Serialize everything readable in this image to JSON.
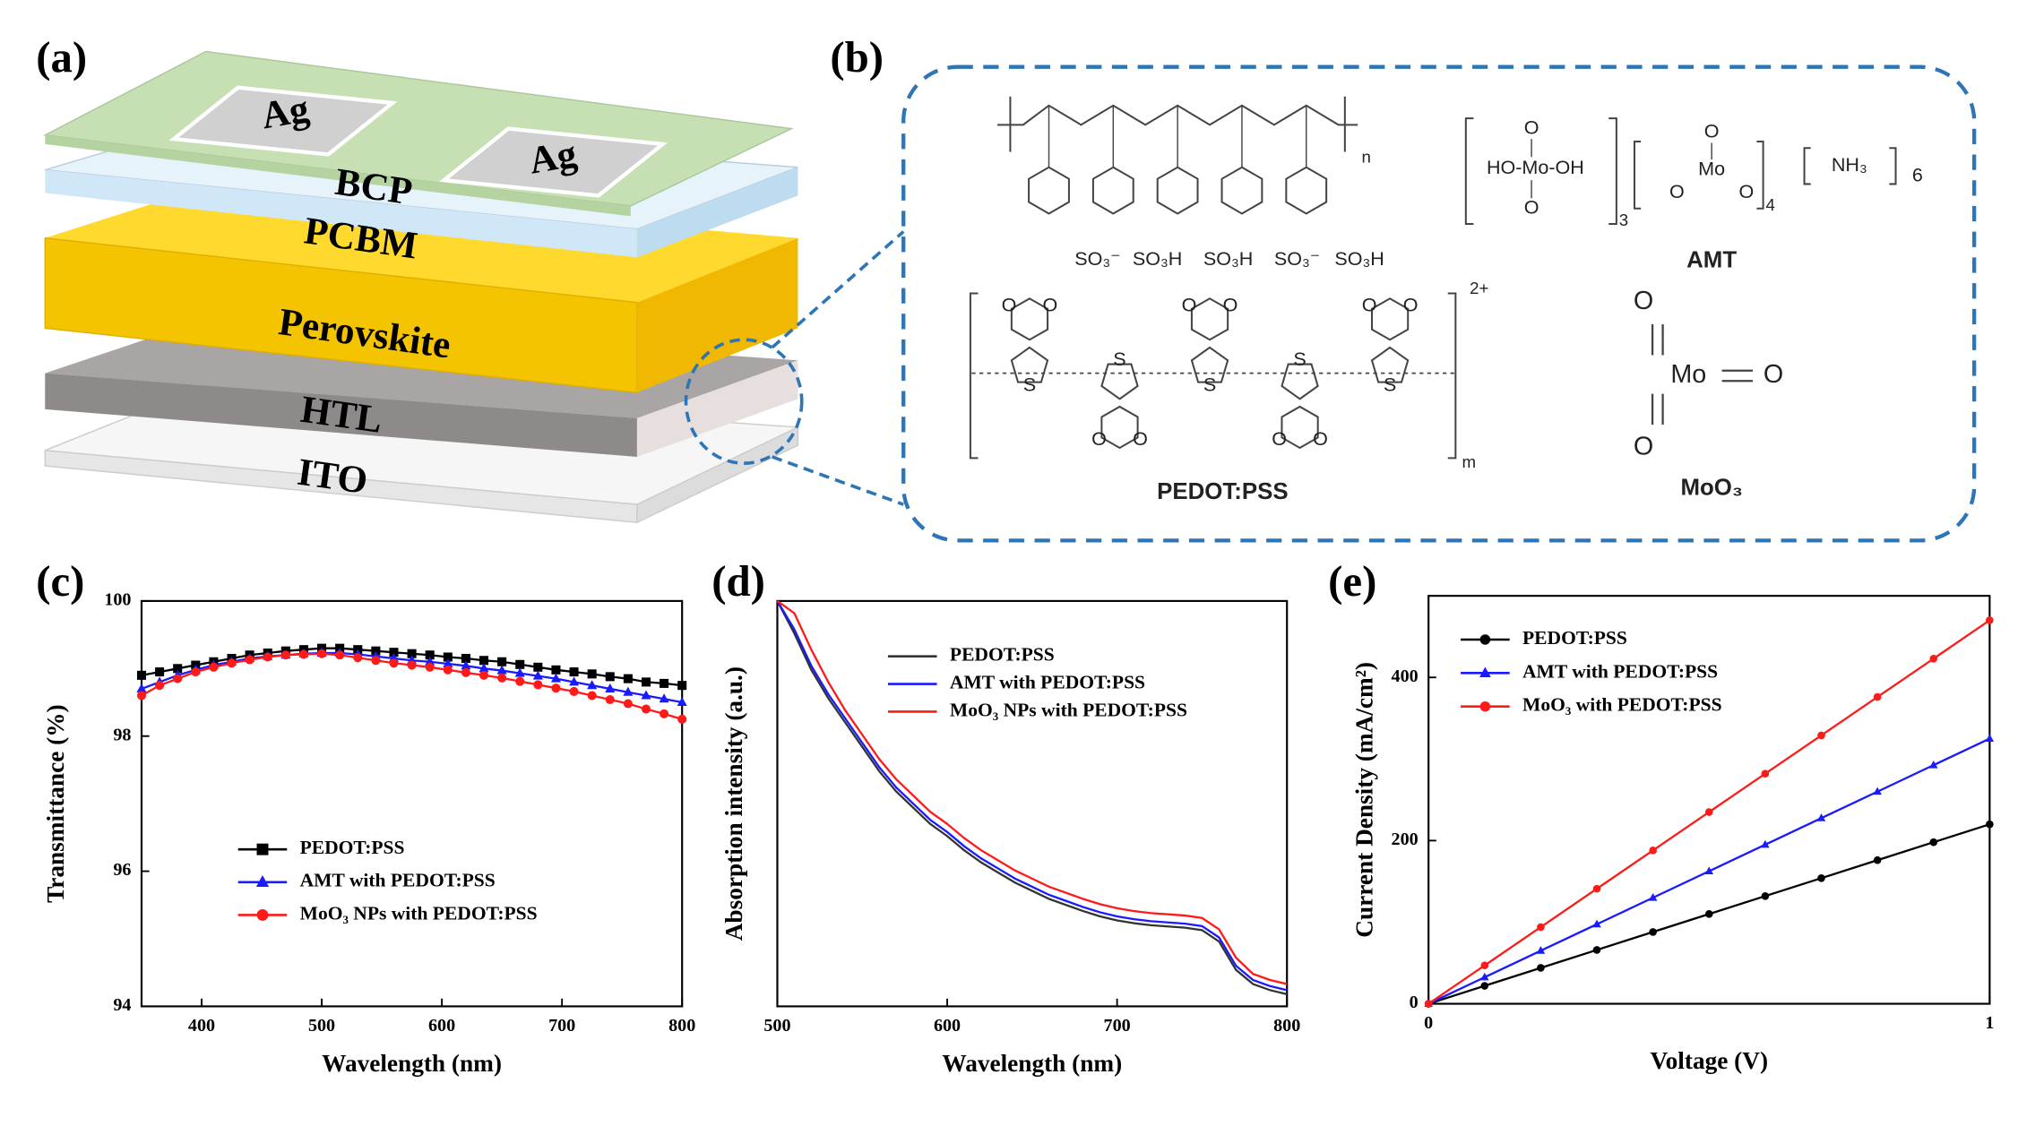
{
  "panel_labels": [
    "(a)",
    "(b)",
    "(c)",
    "(d)",
    "(e)"
  ],
  "device": {
    "layers": [
      "ITO",
      "HTL",
      "Perovskite",
      "PCBM",
      "BCP"
    ],
    "electrodes": [
      "Ag",
      "Ag"
    ]
  },
  "structures": {
    "pss": {
      "n": "n",
      "groups": [
        "SO₃⁻",
        "SO₃H",
        "SO₃H",
        "SO₃⁻",
        "SO₃H"
      ]
    },
    "pedot": {
      "charge": "2+",
      "m": "m",
      "sulfur": "S",
      "oxygen": "O",
      "label": "PEDOT:PSS"
    },
    "amt": {
      "acid": "HO-Mo-OH",
      "oxo": "O",
      "sub3": "3",
      "anion_mo": "Mo",
      "sub4": "4",
      "ammonia": "NH₃",
      "six": "6",
      "label": "AMT"
    },
    "moo3": {
      "metal": "Mo",
      "oxygen": "O",
      "label": "MoO₃"
    }
  },
  "chart_data": [
    {
      "type": "line",
      "xlabel": "Wavelength (nm)",
      "ylabel": "Transmittance (%)",
      "xlim": [
        350,
        800
      ],
      "ylim": [
        94,
        100
      ],
      "xticks": [
        400,
        500,
        600,
        700,
        800
      ],
      "yticks": [
        94,
        96,
        98,
        100
      ],
      "x": [
        350,
        365,
        380,
        395,
        410,
        425,
        440,
        455,
        470,
        485,
        500,
        515,
        530,
        545,
        560,
        575,
        590,
        605,
        620,
        635,
        650,
        665,
        680,
        695,
        710,
        725,
        740,
        755,
        770,
        785,
        800
      ],
      "series": [
        {
          "name": "PEDOT:PSS",
          "color": "#000000",
          "marker": "square",
          "values": [
            98.9,
            98.95,
            99.0,
            99.05,
            99.1,
            99.15,
            99.2,
            99.23,
            99.26,
            99.28,
            99.3,
            99.3,
            99.28,
            99.26,
            99.24,
            99.22,
            99.2,
            99.17,
            99.15,
            99.12,
            99.1,
            99.06,
            99.02,
            98.98,
            98.95,
            98.92,
            98.88,
            98.85,
            98.8,
            98.78,
            98.75
          ]
        },
        {
          "name": "AMT with PEDOT:PSS",
          "color": "#1a1aff",
          "marker": "triangle",
          "values": [
            98.7,
            98.8,
            98.9,
            98.98,
            99.05,
            99.1,
            99.15,
            99.18,
            99.2,
            99.22,
            99.23,
            99.23,
            99.21,
            99.18,
            99.15,
            99.12,
            99.1,
            99.07,
            99.04,
            99.0,
            98.97,
            98.93,
            98.89,
            98.85,
            98.8,
            98.75,
            98.7,
            98.65,
            98.6,
            98.55,
            98.5
          ]
        },
        {
          "name": "MoO₃ NPs with PEDOT:PSS",
          "color": "#ff1a1a",
          "marker": "circle",
          "values": [
            98.6,
            98.75,
            98.85,
            98.95,
            99.02,
            99.08,
            99.13,
            99.17,
            99.2,
            99.21,
            99.22,
            99.2,
            99.16,
            99.12,
            99.08,
            99.05,
            99.02,
            98.98,
            98.94,
            98.9,
            98.86,
            98.81,
            98.76,
            98.71,
            98.66,
            98.6,
            98.54,
            98.48,
            98.4,
            98.33,
            98.25
          ]
        }
      ]
    },
    {
      "type": "line",
      "xlabel": "Wavelength (nm)",
      "ylabel": "Absorption intensity (a.u.)",
      "xlim": [
        500,
        800
      ],
      "ylim": [
        0,
        1
      ],
      "xticks": [
        500,
        600,
        700,
        800
      ],
      "x": [
        500,
        510,
        520,
        530,
        540,
        550,
        560,
        570,
        580,
        590,
        600,
        610,
        620,
        630,
        640,
        650,
        660,
        670,
        680,
        690,
        700,
        710,
        720,
        730,
        740,
        750,
        760,
        770,
        780,
        790,
        800
      ],
      "series": [
        {
          "name": "PEDOT:PSS",
          "color": "#333333",
          "values": [
            1.0,
            0.92,
            0.83,
            0.76,
            0.7,
            0.64,
            0.58,
            0.53,
            0.49,
            0.45,
            0.42,
            0.385,
            0.355,
            0.33,
            0.305,
            0.285,
            0.265,
            0.25,
            0.235,
            0.222,
            0.212,
            0.205,
            0.2,
            0.197,
            0.194,
            0.188,
            0.16,
            0.09,
            0.055,
            0.04,
            0.03
          ]
        },
        {
          "name": "AMT with PEDOT:PSS",
          "color": "#1a1aff",
          "values": [
            1.0,
            0.93,
            0.84,
            0.77,
            0.71,
            0.65,
            0.59,
            0.54,
            0.5,
            0.46,
            0.43,
            0.395,
            0.365,
            0.34,
            0.315,
            0.295,
            0.275,
            0.26,
            0.245,
            0.232,
            0.222,
            0.215,
            0.21,
            0.207,
            0.204,
            0.198,
            0.17,
            0.1,
            0.065,
            0.05,
            0.04
          ]
        },
        {
          "name": "MoO₃ NPs with PEDOT:PSS",
          "color": "#ff1a1a",
          "values": [
            1.0,
            0.97,
            0.88,
            0.8,
            0.73,
            0.67,
            0.61,
            0.56,
            0.52,
            0.48,
            0.45,
            0.415,
            0.385,
            0.36,
            0.335,
            0.315,
            0.295,
            0.28,
            0.265,
            0.252,
            0.242,
            0.235,
            0.23,
            0.227,
            0.224,
            0.218,
            0.19,
            0.12,
            0.08,
            0.065,
            0.055
          ]
        }
      ]
    },
    {
      "type": "line",
      "xlabel": "Voltage (V)",
      "ylabel": "Current Density (mA/cm²)",
      "xlim": [
        0,
        1
      ],
      "ylim": [
        0,
        500
      ],
      "xticks": [
        0,
        1
      ],
      "yticks": [
        0,
        200,
        400
      ],
      "x": [
        0,
        0.1,
        0.2,
        0.3,
        0.4,
        0.5,
        0.6,
        0.7,
        0.8,
        0.9,
        1
      ],
      "series": [
        {
          "name": "PEDOT:PSS",
          "color": "#000000",
          "marker": "circle",
          "values": [
            0,
            22,
            44,
            66,
            88,
            110,
            132,
            154,
            176,
            198,
            220
          ]
        },
        {
          "name": "AMT with PEDOT:PSS",
          "color": "#1a1aff",
          "marker": "triangle",
          "values": [
            0,
            32.5,
            65,
            97.5,
            130,
            162.5,
            195,
            227.5,
            260,
            292.5,
            325
          ]
        },
        {
          "name": "MoO₃ with PEDOT:PSS",
          "color": "#ff1a1a",
          "marker": "circle",
          "values": [
            0,
            47,
            94,
            141,
            188,
            235,
            282,
            329,
            376,
            423,
            470
          ]
        }
      ]
    }
  ]
}
